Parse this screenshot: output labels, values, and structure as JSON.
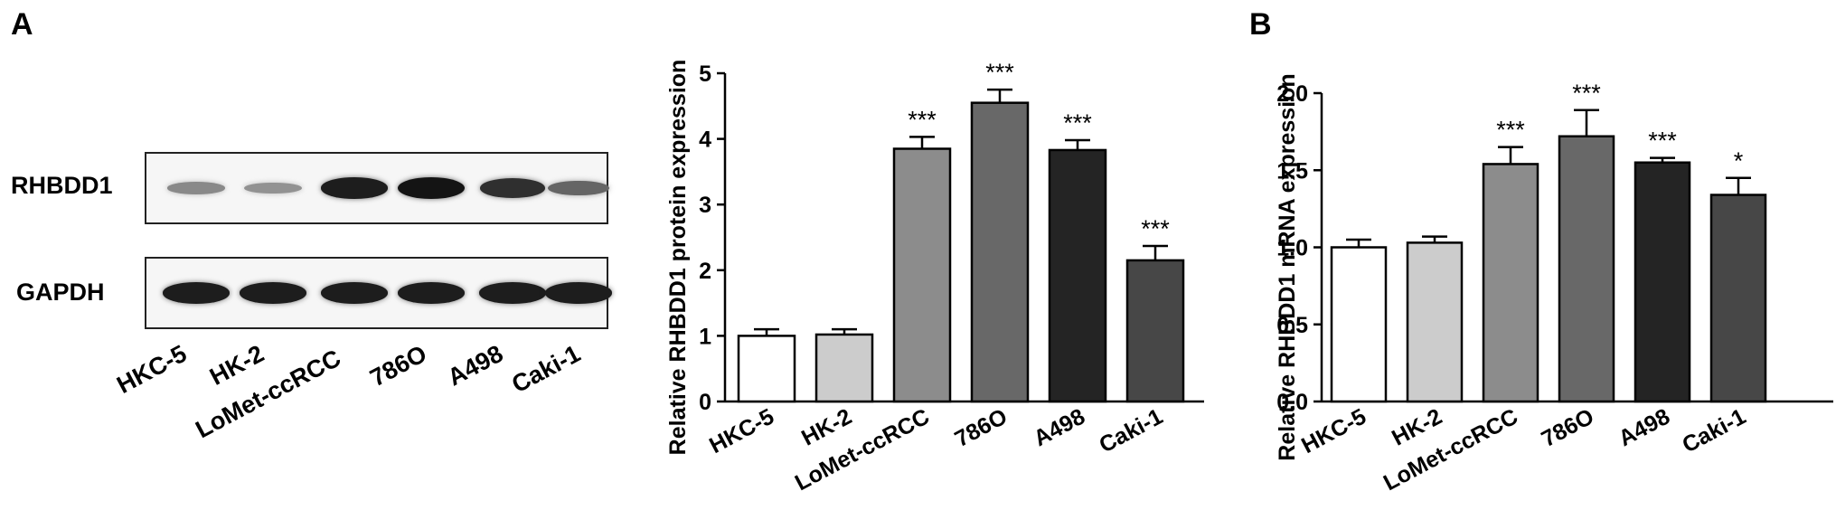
{
  "panels": {
    "a": "A",
    "b": "B"
  },
  "western_blot": {
    "rows": [
      {
        "label": "RHBDD1",
        "intensities": [
          0.35,
          0.3,
          0.95,
          1.0,
          0.85,
          0.55
        ]
      },
      {
        "label": "GAPDH",
        "intensities": [
          0.95,
          0.95,
          0.95,
          0.95,
          0.95,
          0.95
        ]
      }
    ],
    "lanes": [
      "HKC-5",
      "HK-2",
      "LoMet-ccRCC",
      "786O",
      "A498",
      "Caki-1"
    ]
  },
  "colors": [
    "#ffffff",
    "#cccccc",
    "#8c8c8c",
    "#686868",
    "#242424",
    "#474747"
  ],
  "chart_data": [
    {
      "type": "bar",
      "categories": [
        "HKC-5",
        "HK-2",
        "LoMet-ccRCC",
        "786O",
        "A498",
        "Caki-1"
      ],
      "values": [
        1.0,
        1.02,
        3.85,
        4.55,
        3.83,
        2.15
      ],
      "errors": [
        0.1,
        0.08,
        0.18,
        0.2,
        0.15,
        0.22
      ],
      "significance": [
        "",
        "",
        "***",
        "***",
        "***",
        "***"
      ],
      "ylabel": "Relative RHBDD1 protein expression",
      "ylim": [
        0,
        5
      ],
      "yticks": [
        "0",
        "1",
        "2",
        "3",
        "4",
        "5"
      ],
      "grid": false
    },
    {
      "type": "bar",
      "categories": [
        "HKC-5",
        "HK-2",
        "LoMet-ccRCC",
        "786O",
        "A498",
        "Caki-1"
      ],
      "values": [
        1.0,
        1.03,
        1.54,
        1.72,
        1.55,
        1.34
      ],
      "errors": [
        0.05,
        0.04,
        0.11,
        0.17,
        0.03,
        0.11
      ],
      "significance": [
        "",
        "",
        "***",
        "***",
        "***",
        "*"
      ],
      "ylabel": "Relative RHBDD1 mRNA expression",
      "ylim": [
        0,
        2.0
      ],
      "yticks": [
        "0.0",
        "0.5",
        "1.0",
        "1.5",
        "2.0"
      ],
      "grid": false
    }
  ]
}
